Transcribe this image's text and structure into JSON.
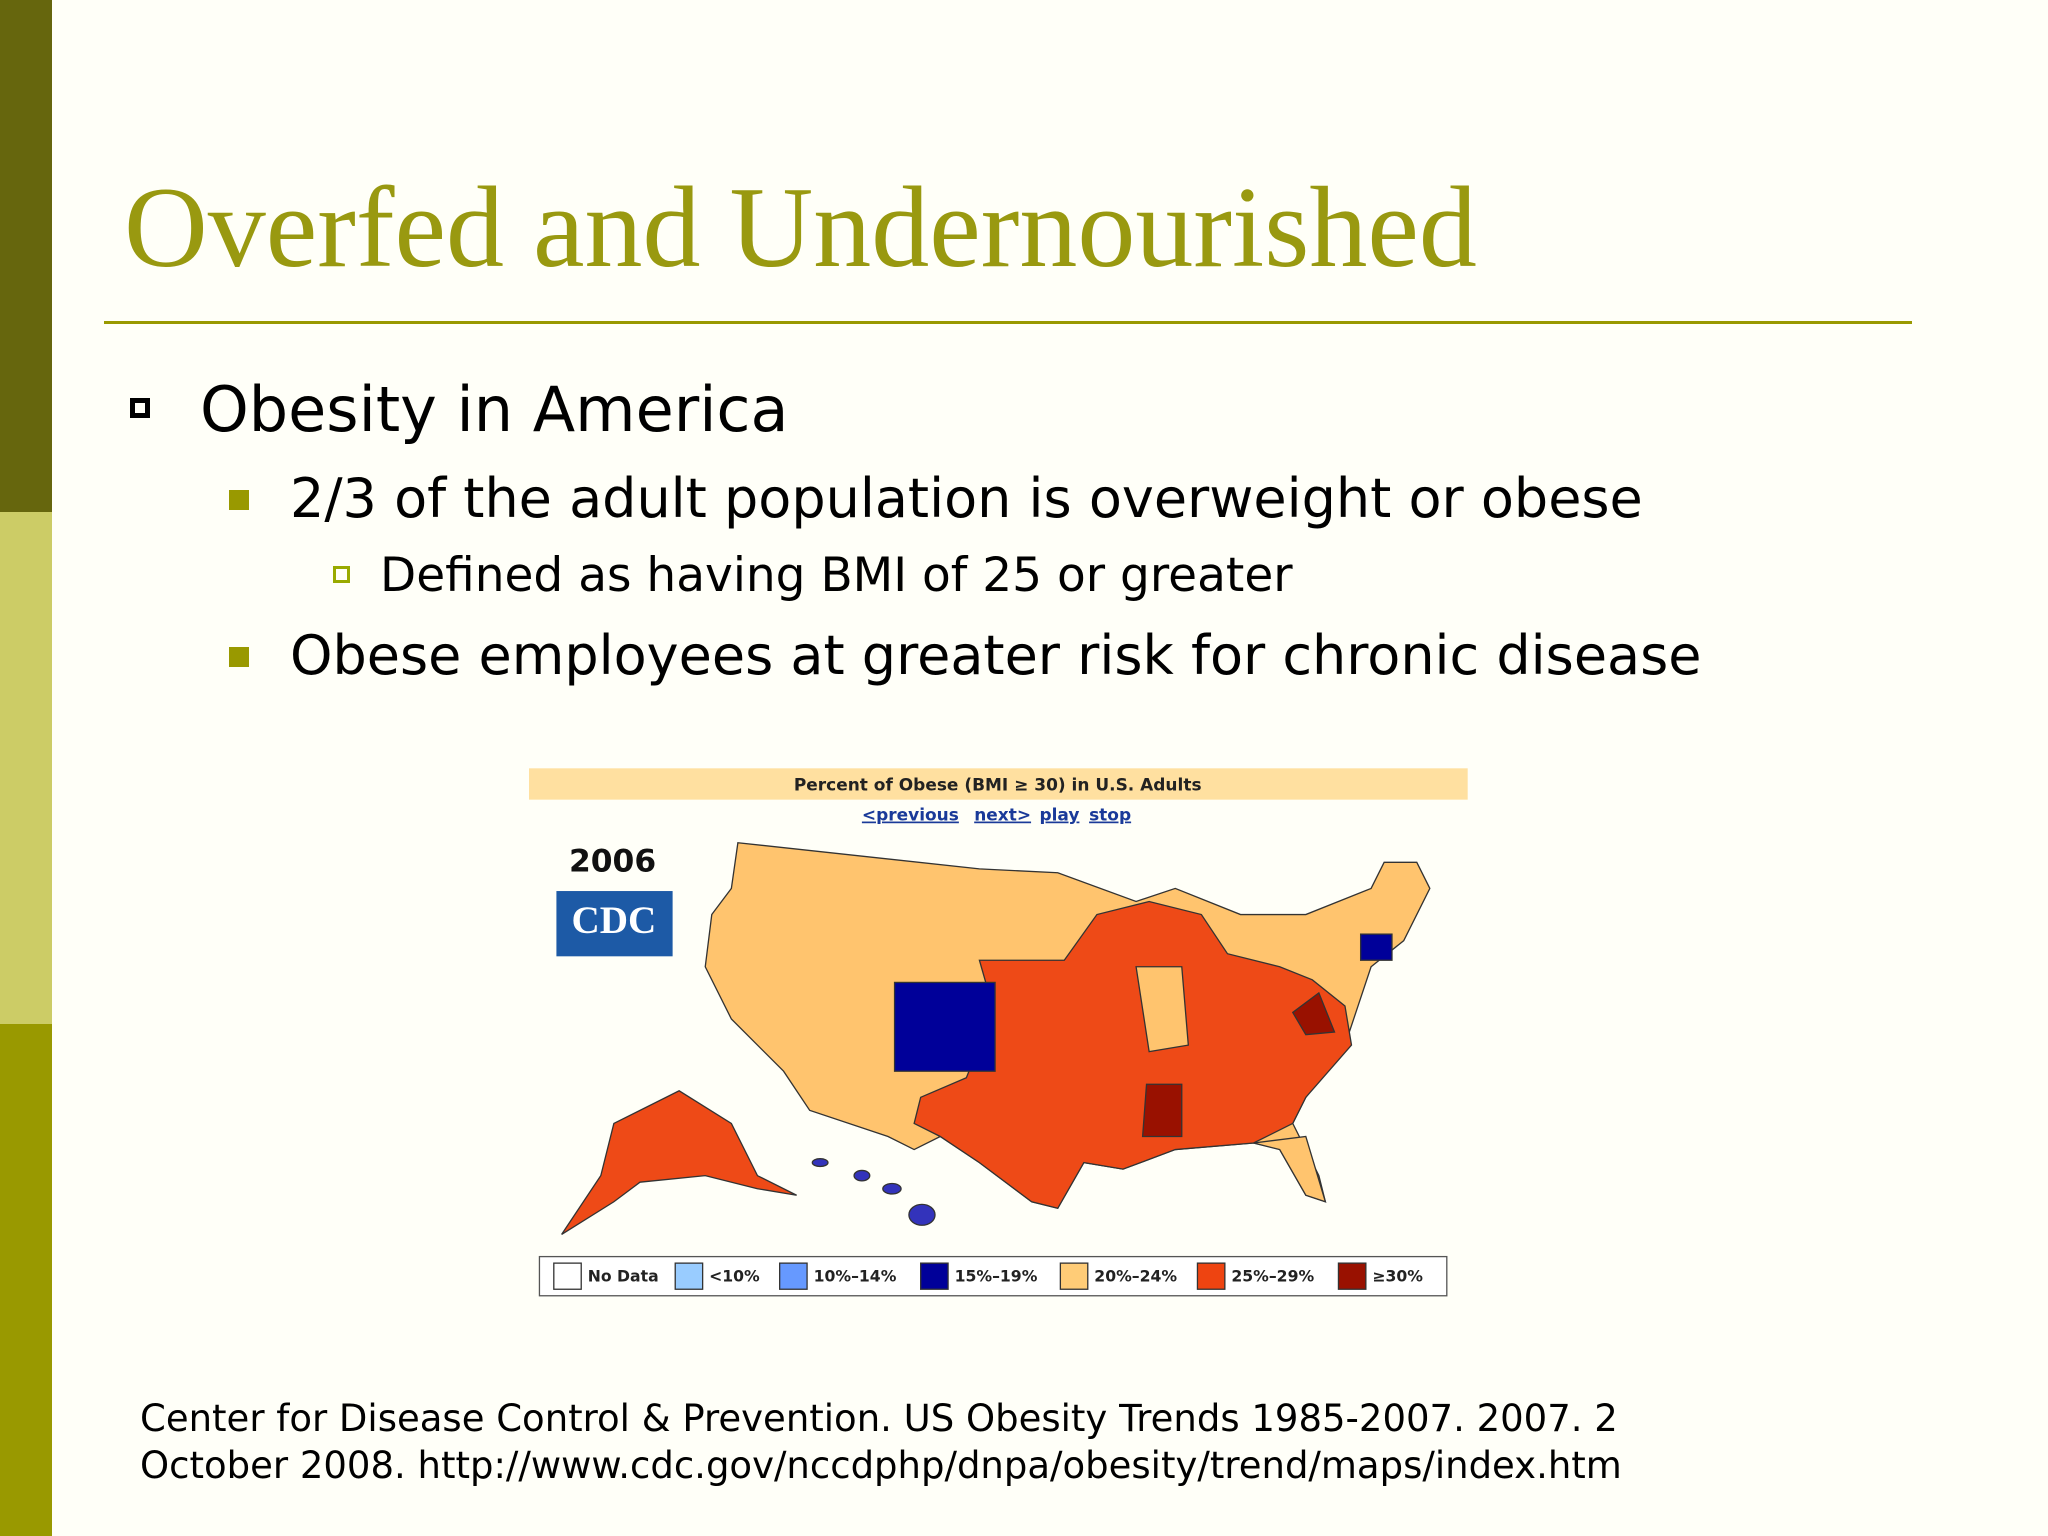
{
  "slide": {
    "title": "Overfed and Undernourished",
    "bullets": [
      {
        "level": 1,
        "text": "Obesity in America"
      },
      {
        "level": 2,
        "text": "2/3 of the adult population is overweight or obese"
      },
      {
        "level": 3,
        "text": "Defined as having BMI of 25 or greater"
      },
      {
        "level": 2,
        "text": "Obese employees at greater risk for chronic disease"
      }
    ],
    "map": {
      "title": "Percent of Obese (BMI ≥ 30) in U.S. Adults",
      "links": [
        "<previous",
        "next>",
        "play",
        "stop"
      ],
      "year": "2006",
      "logo": "CDC",
      "legend": [
        {
          "label": "No Data",
          "color": "#ffffff"
        },
        {
          "label": "<10%",
          "color": "#99ccff"
        },
        {
          "label": "10%–14%",
          "color": "#6699ff"
        },
        {
          "label": "15%–19%",
          "color": "#000099"
        },
        {
          "label": "20%–24%",
          "color": "#ffcc77"
        },
        {
          "label": "25%–29%",
          "color": "#ee4411"
        },
        {
          "label": "≥30%",
          "color": "#991100"
        }
      ]
    },
    "citation": [
      "Center for Disease Control & Prevention.  US Obesity Trends 1985-2007.  2007.  2",
      "October 2008.  http://www.cdc.gov/nccdphp/dnpa/obesity/trend/maps/index.htm"
    ]
  }
}
